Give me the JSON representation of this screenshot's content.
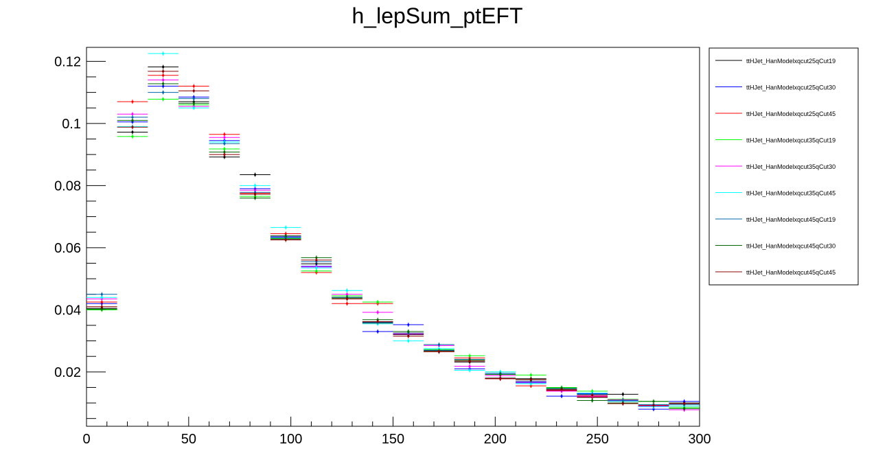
{
  "chart_data": {
    "type": "scatter",
    "title": "h_lepSum_ptEFT",
    "xlabel": "",
    "ylabel": "",
    "xlim": [
      0,
      300
    ],
    "ylim": [
      0.0025,
      0.1245
    ],
    "x_ticks": [
      0,
      50,
      100,
      150,
      200,
      250,
      300
    ],
    "y_ticks": [
      0.02,
      0.04,
      0.06,
      0.08,
      0.1,
      0.12
    ],
    "x_tick_labels": [
      "0",
      "50",
      "100",
      "150",
      "200",
      "250",
      "300"
    ],
    "y_tick_labels": [
      "0.02",
      "0.04",
      "0.06",
      "0.08",
      "0.1",
      "0.12"
    ],
    "bin_width": 15,
    "bin_centers": [
      7.5,
      22.5,
      37.5,
      52.5,
      67.5,
      82.5,
      97.5,
      112.5,
      127.5,
      142.5,
      157.5,
      172.5,
      187.5,
      202.5,
      217.5,
      232.5,
      247.5,
      262.5,
      277.5,
      292.5
    ],
    "grid": false,
    "legend_position": "right",
    "series": [
      {
        "name": "ttHJet_HanModelxqcut25qCut19",
        "color": "#000000",
        "values": [
          0.0405,
          0.0972,
          0.1182,
          0.107,
          0.0892,
          0.0835,
          0.0628,
          0.0548,
          0.044,
          0.0358,
          0.032,
          0.0265,
          0.0232,
          0.018,
          0.0178,
          0.0142,
          0.0118,
          0.0128,
          0.009,
          0.01
        ]
      },
      {
        "name": "ttHJet_HanModelxqcut25qCut30",
        "color": "#0000ff",
        "values": [
          0.042,
          0.1005,
          0.112,
          0.1085,
          0.0945,
          0.079,
          0.0635,
          0.054,
          0.0445,
          0.033,
          0.0352,
          0.027,
          0.021,
          0.0195,
          0.0165,
          0.0122,
          0.013,
          0.0105,
          0.008,
          0.0105
        ]
      },
      {
        "name": "ttHJet_HanModelxqcut25qCut45",
        "color": "#ff0000",
        "values": [
          0.0425,
          0.107,
          0.1155,
          0.112,
          0.0965,
          0.0775,
          0.0645,
          0.052,
          0.042,
          0.042,
          0.0325,
          0.0265,
          0.0245,
          0.0178,
          0.0155,
          0.014,
          0.012,
          0.0105,
          0.009,
          0.009
        ]
      },
      {
        "name": "ttHJet_HanModelxqcut35qCut19",
        "color": "#00ff00",
        "values": [
          0.04,
          0.0958,
          0.1078,
          0.106,
          0.0918,
          0.0765,
          0.063,
          0.0525,
          0.0445,
          0.0425,
          0.033,
          0.0272,
          0.0252,
          0.02,
          0.019,
          0.015,
          0.0138,
          0.0112,
          0.0105,
          0.0085
        ]
      },
      {
        "name": "ttHJet_HanModelxqcut35qCut30",
        "color": "#ff00ff",
        "values": [
          0.0435,
          0.103,
          0.114,
          0.1055,
          0.0955,
          0.0785,
          0.0638,
          0.0538,
          0.045,
          0.0392,
          0.0322,
          0.0285,
          0.0218,
          0.0188,
          0.0168,
          0.0138,
          0.0122,
          0.011,
          0.009,
          0.0078
        ]
      },
      {
        "name": "ttHJet_HanModelxqcut35qCut45",
        "color": "#00ffff",
        "values": [
          0.044,
          0.099,
          0.1225,
          0.105,
          0.094,
          0.08,
          0.0665,
          0.0535,
          0.0462,
          0.0355,
          0.03,
          0.0275,
          0.0205,
          0.02,
          0.0162,
          0.0148,
          0.0132,
          0.0105,
          0.0088,
          0.009
        ]
      },
      {
        "name": "ttHJet_HanModelxqcut45qCut19",
        "color": "#0066aa",
        "values": [
          0.045,
          0.102,
          0.11,
          0.108,
          0.0935,
          0.0778,
          0.0632,
          0.0555,
          0.044,
          0.036,
          0.0325,
          0.0288,
          0.024,
          0.0195,
          0.017,
          0.0145,
          0.0128,
          0.0108,
          0.0095,
          0.0095
        ]
      },
      {
        "name": "ttHJet_HanModelxqcut45qCut30",
        "color": "#006600",
        "values": [
          0.0402,
          0.101,
          0.1128,
          0.1065,
          0.0908,
          0.076,
          0.0638,
          0.0568,
          0.0438,
          0.0368,
          0.033,
          0.0268,
          0.0238,
          0.0192,
          0.0175,
          0.0148,
          0.0108,
          0.01,
          0.0105,
          0.0082
        ]
      },
      {
        "name": "ttHJet_HanModelxqcut45qCut45",
        "color": "#8b0000",
        "values": [
          0.041,
          0.0988,
          0.1168,
          0.1105,
          0.09,
          0.0772,
          0.0625,
          0.056,
          0.0435,
          0.0362,
          0.0315,
          0.0265,
          0.0235,
          0.0178,
          0.0175,
          0.0143,
          0.0125,
          0.0098,
          0.0092,
          0.0098
        ]
      }
    ]
  }
}
